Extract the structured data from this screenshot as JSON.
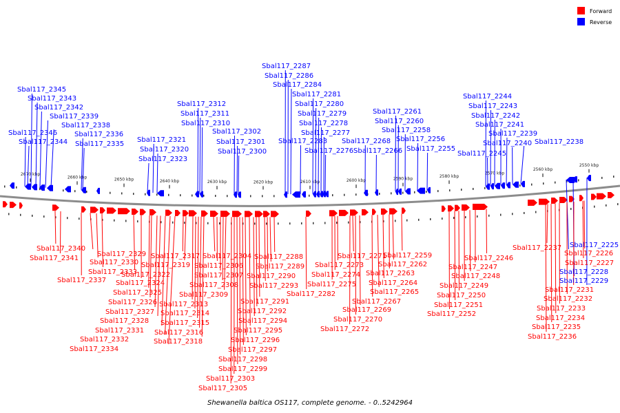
{
  "caption": "Shewanella baltica OS117, complete genome. - 0..5242964",
  "legend": [
    {
      "label": "Forward",
      "color": "#ff0000"
    },
    {
      "label": "Reverse",
      "color": "#0000ff"
    }
  ],
  "ticks": [
    "2670 kbp",
    "2660 kbp",
    "2650 kbp",
    "2640 kbp",
    "2630 kbp",
    "2620 kbp",
    "2610 kbp",
    "2600 kbp",
    "2590 kbp",
    "2580 kbp",
    "2570 kbp",
    "2560 kbp",
    "2550 kbp"
  ],
  "reverse_labels": [
    "Sbal117_2345",
    "Sbal117_2343",
    "Sbal117_2342",
    "Sbal117_2339",
    "Sbal117_2338",
    "Sbal117_2346",
    "Sbal117_2336",
    "Sbal117_2344",
    "Sbal117_2335",
    "Sbal117_2321",
    "Sbal117_2320",
    "Sbal117_2323",
    "Sbal117_2312",
    "Sbal117_2311",
    "Sbal117_2310",
    "Sbal117_2302",
    "Sbal117_2301",
    "Sbal117_2300",
    "Sbal117_2287",
    "Sbal117_2286",
    "Sbal117_2284",
    "Sbal117_2281",
    "Sbal117_2280",
    "Sbal117_2279",
    "Sbal117_2278",
    "Sbal117_2277",
    "Sbal117_2283",
    "Sbal117_2276",
    "Sbal117_2268",
    "Sbal117_2266",
    "Sbal117_2261",
    "Sbal117_2260",
    "Sbal117_2258",
    "Sbal117_2256",
    "Sbal117_2255",
    "Sbal117_2244",
    "Sbal117_2243",
    "Sbal117_2242",
    "Sbal117_2241",
    "Sbal117_2239",
    "Sbal117_2240",
    "Sbal117_2245",
    "Sbal117_2238",
    "Sbal117_2225",
    "Sbal117_2228",
    "Sbal117_2229"
  ],
  "forward_labels": [
    "Sbal117_2340",
    "Sbal117_2341",
    "Sbal117_2337",
    "Sbal117_2329",
    "Sbal117_2330",
    "Sbal117_2333",
    "Sbal117_2322",
    "Sbal117_2324",
    "Sbal117_2325",
    "Sbal117_2326",
    "Sbal117_2327",
    "Sbal117_2328",
    "Sbal117_2331",
    "Sbal117_2332",
    "Sbal117_2334",
    "Sbal117_2317",
    "Sbal117_2319",
    "Sbal117_2313",
    "Sbal117_2314",
    "Sbal117_2315",
    "Sbal117_2316",
    "Sbal117_2318",
    "Sbal117_2304",
    "Sbal117_2306",
    "Sbal117_2307",
    "Sbal117_2308",
    "Sbal117_2309",
    "Sbal117_2288",
    "Sbal117_2289",
    "Sbal117_2290",
    "Sbal117_2293",
    "Sbal117_2291",
    "Sbal117_2292",
    "Sbal117_2294",
    "Sbal117_2295",
    "Sbal117_2296",
    "Sbal117_2297",
    "Sbal117_2298",
    "Sbal117_2299",
    "Sbal117_2303",
    "Sbal117_2305",
    "Sbal117_2282",
    "Sbal117_2271",
    "Sbal117_2273",
    "Sbal117_2274",
    "Sbal117_2275",
    "Sbal117_2269",
    "Sbal117_2270",
    "Sbal117_2272",
    "Sbal117_2259",
    "Sbal117_2262",
    "Sbal117_2263",
    "Sbal117_2264",
    "Sbal117_2265",
    "Sbal117_2267",
    "Sbal117_2246",
    "Sbal117_2247",
    "Sbal117_2248",
    "Sbal117_2249",
    "Sbal117_2250",
    "Sbal117_2251",
    "Sbal117_2252",
    "Sbal117_2237",
    "Sbal117_2226",
    "Sbal117_2227",
    "Sbal117_2231",
    "Sbal117_2232",
    "Sbal117_2233",
    "Sbal117_2234",
    "Sbal117_2235",
    "Sbal117_2236"
  ]
}
